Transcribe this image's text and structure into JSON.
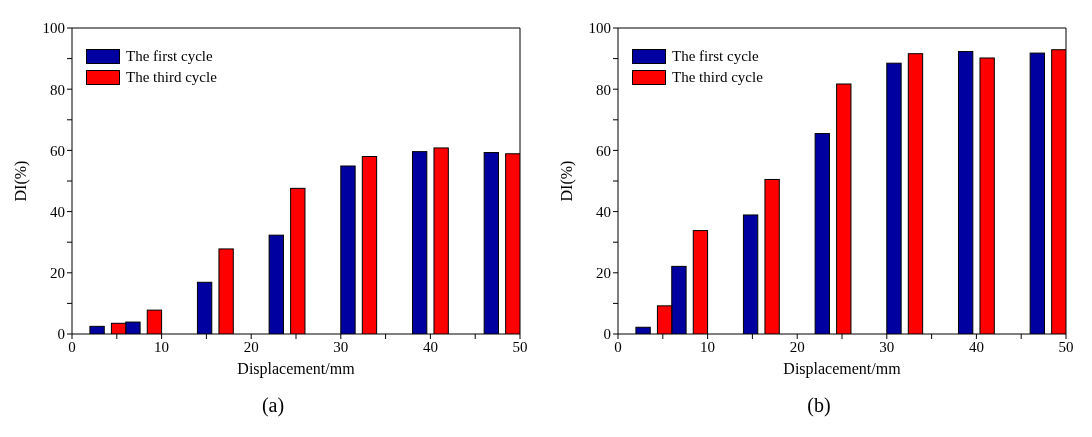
{
  "chart_data": [
    {
      "type": "bar",
      "xlabel": "Displacement/mm",
      "ylabel": "DI(%)",
      "xlim": [
        0,
        50
      ],
      "xticks": [
        0,
        {
          "value": 5,
          "label": null
        },
        10,
        {
          "value": 15,
          "label": null
        },
        20,
        {
          "value": 25,
          "label": null
        },
        30,
        {
          "value": 35,
          "label": null
        },
        40,
        {
          "value": 45,
          "label": null
        },
        50
      ],
      "ylim": [
        0,
        100
      ],
      "yticks": [
        0,
        {
          "value": 10,
          "label": null
        },
        20,
        {
          "value": 30,
          "label": null
        },
        40,
        {
          "value": 50,
          "label": null
        },
        60,
        {
          "value": 70,
          "label": null
        },
        80,
        {
          "value": 90,
          "label": null
        },
        100
      ],
      "legend": "top left",
      "annotations": [
        "(a)"
      ],
      "series": [
        {
          "name": "The first cycle",
          "color": "#0000a0",
          "x": [
            2.8,
            6.8,
            14.8,
            22.8,
            30.8,
            38.8,
            46.8
          ],
          "values": [
            2.5,
            3.9,
            16.9,
            32.3,
            54.9,
            59.6,
            59.3
          ]
        },
        {
          "name": "The third cycle",
          "color": "#ff0000",
          "x": [
            5.2,
            9.2,
            17.2,
            25.2,
            33.2,
            41.2,
            49.2
          ],
          "values": [
            3.5,
            7.8,
            27.8,
            47.6,
            58.0,
            60.8,
            58.9
          ]
        }
      ]
    },
    {
      "type": "bar",
      "xlabel": "Displacement/mm",
      "ylabel": "DI(%)",
      "xlim": [
        0,
        50
      ],
      "xticks": [
        0,
        {
          "value": 5,
          "label": null
        },
        10,
        {
          "value": 15,
          "label": null
        },
        20,
        {
          "value": 25,
          "label": null
        },
        30,
        {
          "value": 35,
          "label": null
        },
        40,
        {
          "value": 45,
          "label": null
        },
        50
      ],
      "ylim": [
        0,
        100
      ],
      "yticks": [
        0,
        {
          "value": 10,
          "label": null
        },
        20,
        {
          "value": 30,
          "label": null
        },
        40,
        {
          "value": 50,
          "label": null
        },
        60,
        {
          "value": 70,
          "label": null
        },
        80,
        {
          "value": 90,
          "label": null
        },
        100
      ],
      "legend": "top left",
      "annotations": [
        "(b)"
      ],
      "series": [
        {
          "name": "The first cycle",
          "color": "#0000a0",
          "x": [
            2.8,
            6.8,
            14.8,
            22.8,
            30.8,
            38.8,
            46.8
          ],
          "values": [
            2.2,
            22.1,
            38.9,
            65.5,
            88.5,
            92.3,
            91.8
          ]
        },
        {
          "name": "The third cycle",
          "color": "#ff0000",
          "x": [
            5.2,
            9.2,
            17.2,
            25.2,
            33.2,
            41.2,
            49.2
          ],
          "values": [
            9.2,
            33.8,
            50.5,
            81.7,
            91.6,
            90.2,
            92.9
          ]
        }
      ]
    }
  ]
}
